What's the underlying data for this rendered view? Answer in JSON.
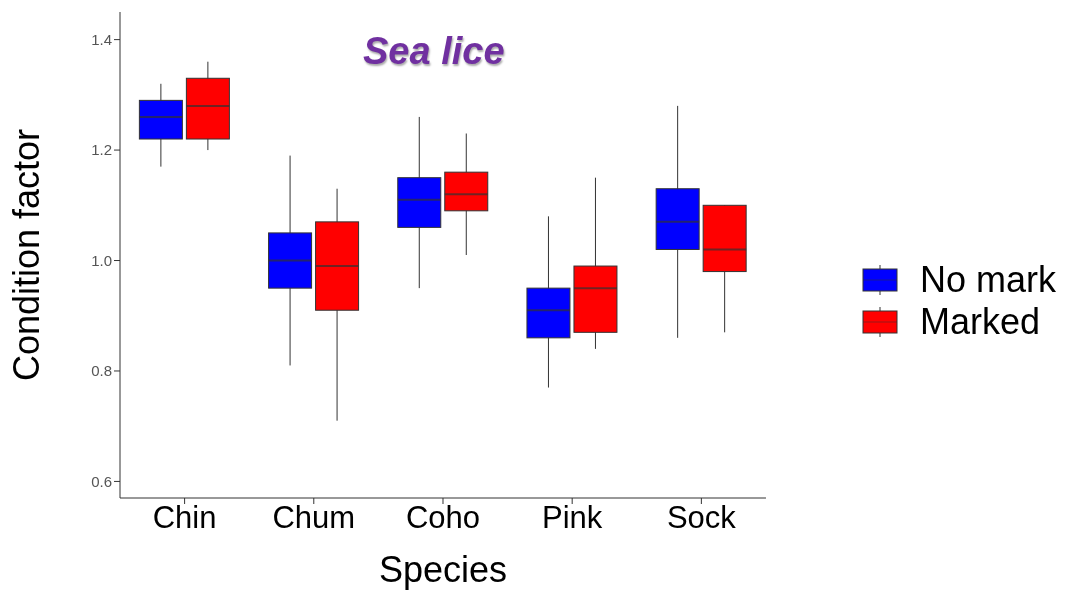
{
  "chart_data": {
    "type": "box",
    "title": "Sea lice",
    "xlabel": "Species",
    "ylabel": "Condition factor",
    "categories": [
      "Chin",
      "Chum",
      "Coho",
      "Pink",
      "Sock"
    ],
    "ylim": [
      0.57,
      1.45
    ],
    "yticks": [
      {
        "value": 0.6,
        "label": "0.6"
      },
      {
        "value": 0.8,
        "label": "0.8"
      },
      {
        "value": 1,
        "label": "1.0"
      },
      {
        "value": 1.2,
        "label": "1.2"
      },
      {
        "value": 1.4,
        "label": "1.4"
      }
    ],
    "grid": false,
    "legend": "right",
    "series": [
      {
        "name": "No mark",
        "color": "#0000ff",
        "boxes": [
          {
            "low": 1.17,
            "q1": 1.22,
            "median": 1.26,
            "q3": 1.29,
            "high": 1.32
          },
          {
            "low": 0.81,
            "q1": 0.95,
            "median": 1.0,
            "q3": 1.05,
            "high": 1.19
          },
          {
            "low": 0.95,
            "q1": 1.06,
            "median": 1.11,
            "q3": 1.15,
            "high": 1.26
          },
          {
            "low": 0.77,
            "q1": 0.86,
            "median": 0.91,
            "q3": 0.95,
            "high": 1.08
          },
          {
            "low": 0.86,
            "q1": 1.02,
            "median": 1.07,
            "q3": 1.13,
            "high": 1.28
          }
        ]
      },
      {
        "name": "Marked",
        "color": "#ff0000",
        "boxes": [
          {
            "low": 1.2,
            "q1": 1.22,
            "median": 1.28,
            "q3": 1.33,
            "high": 1.36
          },
          {
            "low": 0.71,
            "q1": 0.91,
            "median": 0.99,
            "q3": 1.07,
            "high": 1.13
          },
          {
            "low": 1.01,
            "q1": 1.09,
            "median": 1.12,
            "q3": 1.16,
            "high": 1.23
          },
          {
            "low": 0.84,
            "q1": 0.87,
            "median": 0.95,
            "q3": 0.99,
            "high": 1.15
          },
          {
            "low": 0.87,
            "q1": 0.98,
            "median": 1.02,
            "q3": 1.1,
            "high": 1.1
          }
        ]
      }
    ]
  }
}
